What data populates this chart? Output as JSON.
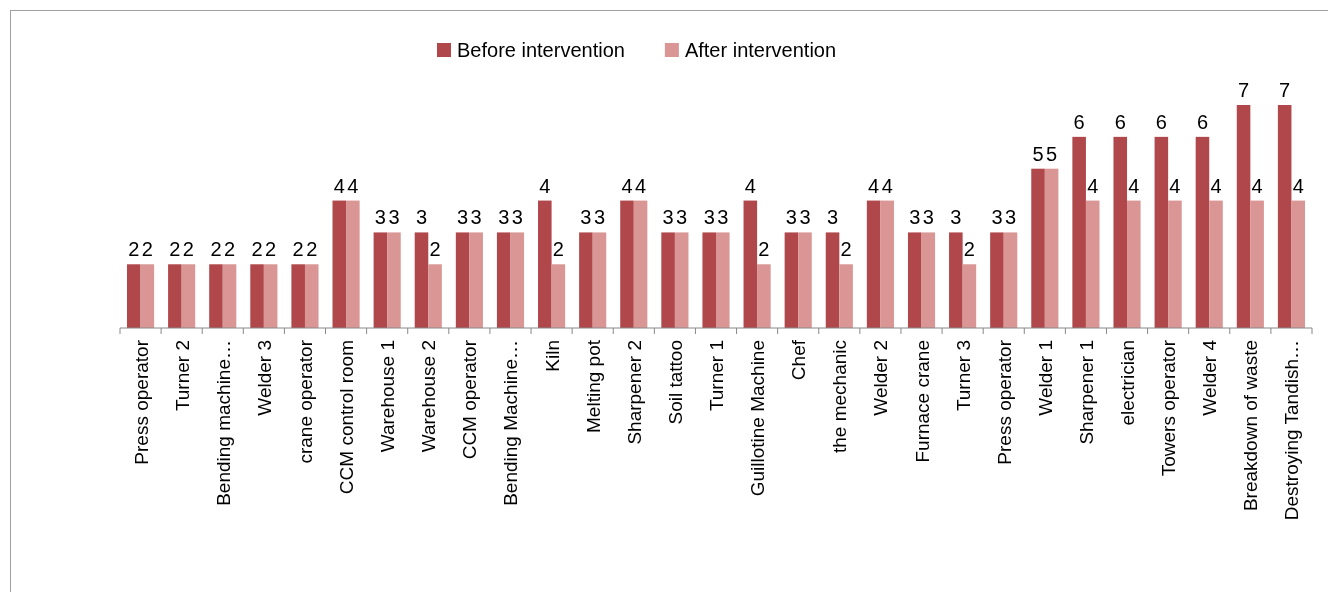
{
  "chart_data": {
    "type": "bar",
    "categories": [
      "Press operator",
      "Turner 2",
      "Bending machine…",
      "Welder 3",
      "crane operator",
      "CCM control room",
      "Warehouse 1",
      "Warehouse 2",
      "CCM operator",
      "Bending Machine…",
      "Kiln",
      "Melting pot",
      "Sharpener 2",
      "Soil tattoo",
      "Turner 1",
      "Guillotine Machine",
      "Chef",
      "the mechanic",
      "Welder 2",
      "Furnace crane",
      "Turner 3",
      "Press operator",
      "Welder 1",
      "Sharpener 1",
      "electrician",
      "Towers operator",
      "Welder 4",
      "Breakdown of waste",
      "Destroying Tandish…"
    ],
    "series": [
      {
        "name": "Before intervention",
        "color": "#b0474a",
        "values": [
          2,
          2,
          2,
          2,
          2,
          4,
          3,
          3,
          3,
          3,
          4,
          3,
          4,
          3,
          3,
          4,
          3,
          3,
          4,
          3,
          3,
          3,
          5,
          6,
          6,
          6,
          6,
          7,
          7
        ]
      },
      {
        "name": "After intervention",
        "color": "#d99694",
        "values": [
          2,
          2,
          2,
          2,
          2,
          4,
          3,
          2,
          3,
          3,
          2,
          3,
          4,
          3,
          3,
          2,
          3,
          2,
          4,
          3,
          2,
          3,
          5,
          4,
          4,
          4,
          4,
          4,
          4
        ]
      }
    ],
    "data_labels": true,
    "legend": "top"
  }
}
